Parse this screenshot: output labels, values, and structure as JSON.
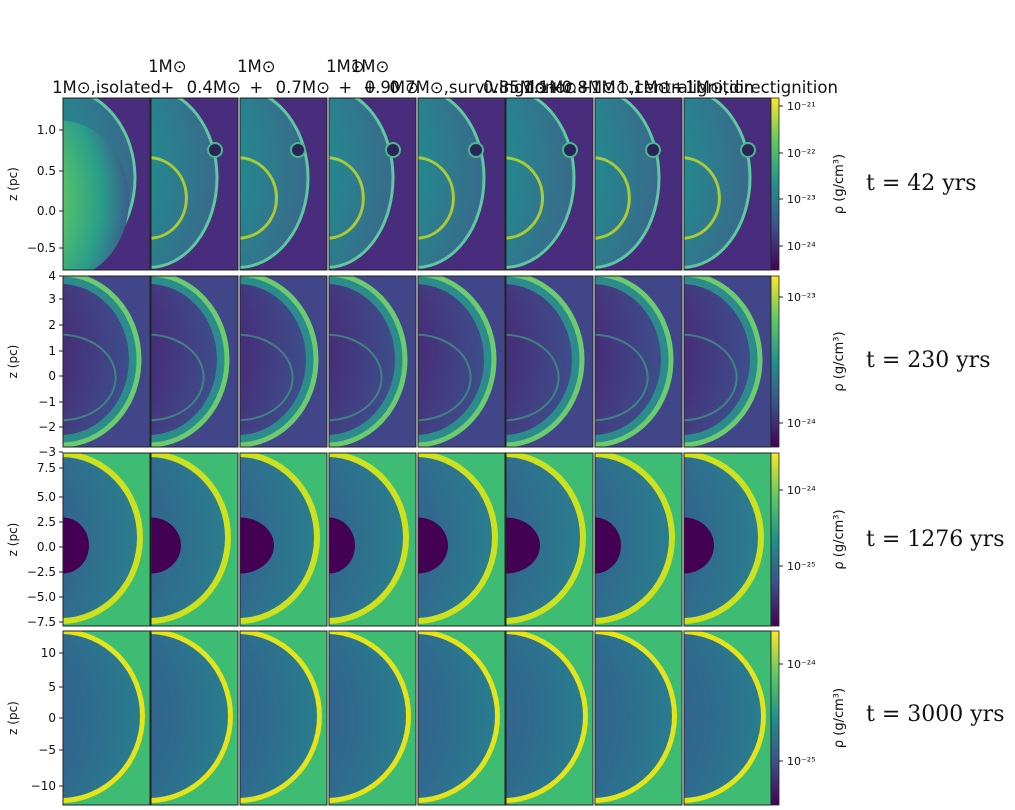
{
  "columns": [
    {
      "lines": [
        "1M⊙,",
        "isolated"
      ]
    },
    {
      "lines": [
        "1M⊙ +",
        "0.4M⊙"
      ]
    },
    {
      "lines": [
        "1M⊙ +",
        "0.7M⊙"
      ]
    },
    {
      "lines": [
        "1M⊙ +",
        "0.9M⊙"
      ]
    },
    {
      "lines": [
        "1M⊙ +",
        "0.7M⊙,",
        "surviving",
        "donor"
      ]
    },
    {
      "lines": [
        "0.85M⊙",
        "+0.8M⊙"
      ]
    },
    {
      "lines": [
        "1.1M⊙",
        "+1M⊙,",
        "central",
        "ignition"
      ]
    },
    {
      "lines": [
        "1.1M⊙",
        "+1M⊙,",
        "direct",
        "ignition"
      ]
    }
  ],
  "rows": [
    {
      "time_label": "t = 42 yrs",
      "ylabel": "z (pc)",
      "yticks": [
        "1.0",
        "0.5",
        "0.0",
        "−0.5"
      ],
      "cbar_label": "ρ (g/cm³)",
      "cbar_ticks": [
        "10⁻²¹",
        "10⁻²²",
        "10⁻²³",
        "10⁻²⁴"
      ]
    },
    {
      "time_label": "t = 230 yrs",
      "ylabel": "z (pc)",
      "yticks": [
        "4",
        "3",
        "2",
        "1",
        "0",
        "−1",
        "−2",
        "−3"
      ],
      "cbar_label": "ρ (g/cm³)",
      "cbar_ticks": [
        "10⁻²³",
        "10⁻²⁴"
      ]
    },
    {
      "time_label": "t = 1276 yrs",
      "ylabel": "z (pc)",
      "yticks": [
        "7.5",
        "5.0",
        "2.5",
        "0.0",
        "−2.5",
        "−5.0",
        "−7.5"
      ],
      "cbar_label": "ρ (g/cm³)",
      "cbar_ticks": [
        "10⁻²⁴",
        "10⁻²⁵"
      ]
    },
    {
      "time_label": "t = 3000 yrs",
      "ylabel": "z (pc)",
      "yticks": [
        "10",
        "5",
        "0",
        "−5",
        "−10"
      ],
      "cbar_label": "ρ (g/cm³)",
      "cbar_ticks": [
        "10⁻²⁴",
        "10⁻²⁵"
      ]
    }
  ]
}
